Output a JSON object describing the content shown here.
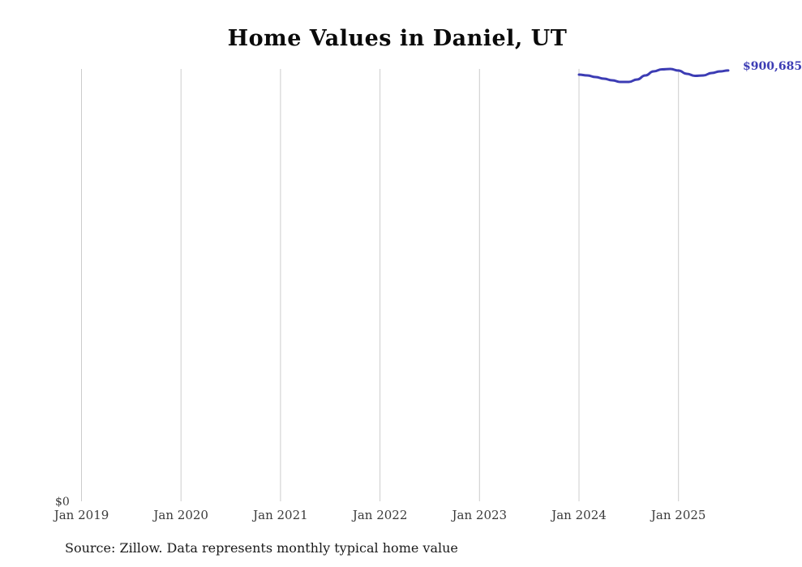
{
  "title": "Home Values in Daniel, UT",
  "source_note": "Source: Zillow. Data represents monthly typical home value",
  "colors": {
    "line": "#3c3cb4",
    "end_label": "#3c3cb4",
    "grid": "#cccccc",
    "tick_text": "#3a3a3a",
    "title_text": "#0a0a0a",
    "background": "#ffffff"
  },
  "chart_data": {
    "type": "line",
    "title": "Home Values in Daniel, UT",
    "xlabel": "",
    "ylabel": "",
    "grid": "vertical-only",
    "legend": "none",
    "y_axis": {
      "min": 0,
      "max": 903900,
      "min_label": "$0"
    },
    "x_tick_labels": [
      "Jan 2019",
      "Jan 2020",
      "Jan 2021",
      "Jan 2022",
      "Jan 2023",
      "Jan 2024",
      "Jan 2025"
    ],
    "series": [
      {
        "name": "Typical home value",
        "start_tick_index": 5,
        "x": [
          "Jan 2024",
          "Feb 2024",
          "Mar 2024",
          "Apr 2024",
          "May 2024",
          "Jun 2024",
          "Jul 2024",
          "Aug 2024",
          "Sep 2024",
          "Oct 2024",
          "Nov 2024",
          "Dec 2024",
          "Jan 2025",
          "Feb 2025",
          "Mar 2025",
          "Apr 2025",
          "May 2025",
          "Jun 2025",
          "Jul 2025"
        ],
        "values": [
          892000,
          890300,
          886900,
          883500,
          880100,
          876700,
          876700,
          881800,
          890300,
          898800,
          903000,
          903900,
          900500,
          893700,
          889500,
          890300,
          895400,
          898800,
          900685
        ]
      }
    ],
    "end_value_label": "$900,685"
  }
}
